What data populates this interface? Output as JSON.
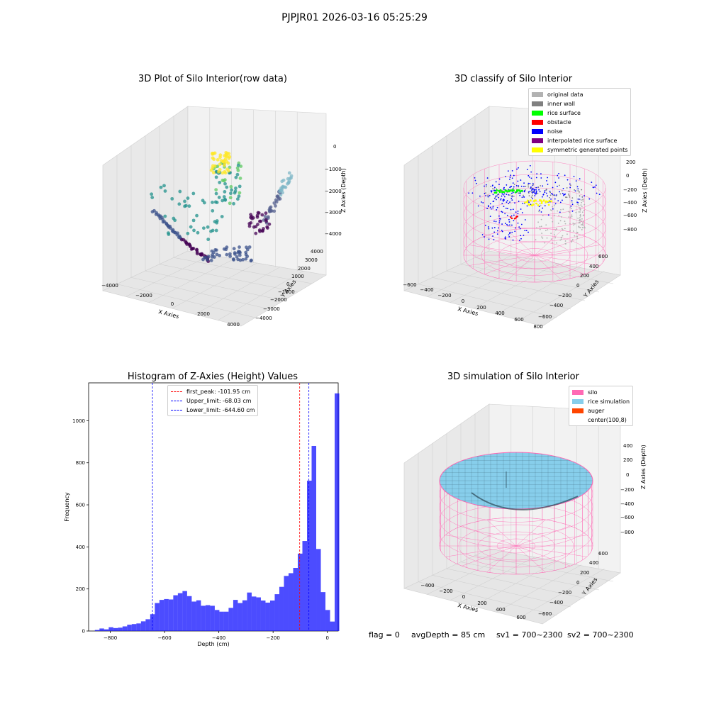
{
  "figure": {
    "suptitle": "PJPJR01 2026-03-16 05:25:29"
  },
  "status": {
    "flag": "flag = 0",
    "avg_depth": "avgDepth = 85 cm",
    "sv1": "sv1 = 700~2300",
    "sv2": "sv2 = 700~2300"
  },
  "chart_data": [
    {
      "type": "scatter",
      "title": "3D Plot of Silo Interior(row data)",
      "xlabel": "X Axies",
      "ylabel": "Y Axies",
      "zlabel": "Z Axies (Depth)",
      "x_ticks": [
        "−4000",
        "−2000",
        "0",
        "2000",
        "4000"
      ],
      "y_ticks": [
        "4000",
        "3000",
        "2000",
        "1000",
        "0",
        "−1000",
        "−2000",
        "−3000",
        "−4000"
      ],
      "z_ticks": [
        "0",
        "−1000",
        "−2000",
        "−3000",
        "−4000"
      ],
      "xlim": [
        -4000,
        4000
      ],
      "ylim": [
        -4000,
        4000
      ],
      "zlim": [
        -4200,
        0
      ],
      "colormap": "viridis",
      "grid": true
    },
    {
      "type": "scatter",
      "title": "3D classify of Silo Interior",
      "xlabel": "X Axies",
      "ylabel": "Y Axies",
      "zlabel": "Z Axies (Depth)",
      "x_ticks": [
        "−600",
        "−400",
        "−200",
        "0",
        "200",
        "400",
        "600",
        "800"
      ],
      "y_ticks": [
        "600",
        "400",
        "200",
        "0",
        "−200",
        "−400",
        "−600"
      ],
      "z_ticks": [
        "200",
        "0",
        "−200",
        "−400",
        "−600",
        "−800"
      ],
      "xlim": [
        -600,
        800
      ],
      "ylim": [
        -600,
        600
      ],
      "zlim": [
        -900,
        200
      ],
      "legend_position": "top-right",
      "legend": [
        {
          "label": "original data",
          "color": "#b2b2b2"
        },
        {
          "label": "inner wall",
          "color": "#808080"
        },
        {
          "label": "rice surface",
          "color": "#00ff00"
        },
        {
          "label": "obstacle",
          "color": "#ff0000"
        },
        {
          "label": "noise",
          "color": "#0000ff"
        },
        {
          "label": "interpolated rice surface",
          "color": "#800080"
        },
        {
          "label": "symmetric generated points",
          "color": "#ffff00"
        }
      ],
      "grid": true
    },
    {
      "type": "bar",
      "title": "Histogram of Z-Axies (Height) Values",
      "xlabel": "Depth (cm)",
      "ylabel": "Frequency",
      "xlim": [
        -880,
        40
      ],
      "ylim": [
        0,
        1180
      ],
      "x_ticks": [
        -800,
        -600,
        -400,
        -200,
        0
      ],
      "y_ticks": [
        0,
        200,
        400,
        600,
        800,
        1000
      ],
      "bin_width": 17,
      "bin_start": -857,
      "values": [
        5,
        12,
        8,
        18,
        14,
        16,
        22,
        30,
        33,
        36,
        46,
        56,
        80,
        133,
        148,
        152,
        150,
        170,
        180,
        190,
        166,
        140,
        146,
        120,
        123,
        120,
        100,
        92,
        92,
        110,
        148,
        133,
        146,
        183,
        164,
        160,
        145,
        135,
        145,
        175,
        210,
        262,
        275,
        300,
        368,
        428,
        715,
        880,
        390,
        185,
        100,
        45,
        1130
      ],
      "color": "#0000ff",
      "legend_position": "top-center",
      "lines": [
        {
          "label": "first_peak: -101.95 cm",
          "x": -101.95,
          "color": "#ff0000"
        },
        {
          "label": "Upper_limit: -68.03 cm",
          "x": -68.03,
          "color": "#0000ff"
        },
        {
          "label": "Lower_limit: -644.60 cm",
          "x": -644.6,
          "color": "#0000ff"
        }
      ],
      "grid": false
    },
    {
      "type": "surface",
      "title": "3D simulation of Silo Interior",
      "xlabel": "X Axies",
      "ylabel": "Y Axies",
      "zlabel": "Z Axies (Depth)",
      "x_ticks": [
        "−400",
        "−200",
        "0",
        "200",
        "400",
        "600"
      ],
      "y_ticks": [
        "600",
        "400",
        "200",
        "0",
        "−200",
        "−400",
        "−600"
      ],
      "z_ticks": [
        "400",
        "200",
        "0",
        "−200",
        "−400",
        "−600",
        "−800"
      ],
      "legend_position": "top-right",
      "legend": [
        {
          "label": "silo",
          "color": "#ff69b4"
        },
        {
          "label": "rice simulation",
          "color": "#87ceeb"
        },
        {
          "label": "auger",
          "color": "#ff4500"
        },
        {
          "label": "center(100,8)",
          "color": ""
        }
      ],
      "grid": true
    }
  ]
}
